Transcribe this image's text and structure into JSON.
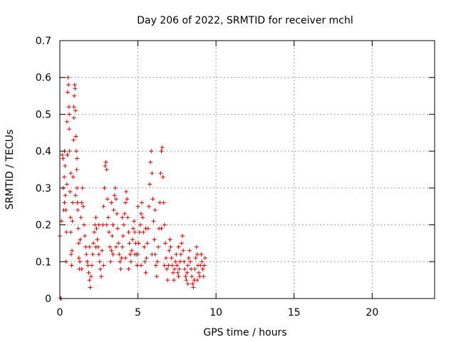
{
  "chart_data": {
    "type": "scatter",
    "title": "Day 206 of 2022, SRMTID for receiver mchl",
    "xlabel": "GPS time / hours",
    "ylabel": "SRMTID / TECUs",
    "xlim": [
      0,
      24
    ],
    "ylim": [
      0,
      0.7
    ],
    "xticks": [
      0,
      5,
      10,
      15,
      20
    ],
    "xtick_labels": [
      "0",
      "5",
      "10",
      "15",
      "20"
    ],
    "yticks": [
      0,
      0.1,
      0.2,
      0.3,
      0.4,
      0.5,
      0.6,
      0.7
    ],
    "ytick_labels": [
      "0",
      "0.1",
      "0.2",
      "0.3",
      "0.4",
      "0.5",
      "0.6",
      "0.7"
    ],
    "grid": true,
    "marker": "+",
    "series": [
      {
        "name": "mchl",
        "color": "#e00000",
        "points": [
          [
            0.0,
            0.17
          ],
          [
            0.05,
            0.0
          ],
          [
            0.08,
            0.0
          ],
          [
            0.1,
            0.21
          ],
          [
            0.15,
            0.39
          ],
          [
            0.2,
            0.38
          ],
          [
            0.22,
            0.3
          ],
          [
            0.25,
            0.24
          ],
          [
            0.28,
            0.33
          ],
          [
            0.3,
            0.4
          ],
          [
            0.33,
            0.36
          ],
          [
            0.35,
            0.28
          ],
          [
            0.38,
            0.24
          ],
          [
            0.4,
            0.1
          ],
          [
            0.42,
            0.18
          ],
          [
            0.45,
            0.31
          ],
          [
            0.48,
            0.39
          ],
          [
            0.5,
            0.56
          ],
          [
            0.52,
            0.6
          ],
          [
            0.55,
            0.58
          ],
          [
            0.58,
            0.52
          ],
          [
            0.6,
            0.46
          ],
          [
            0.62,
            0.4
          ],
          [
            0.65,
            0.29
          ],
          [
            0.68,
            0.22
          ],
          [
            0.7,
            0.18
          ],
          [
            0.72,
            0.12
          ],
          [
            0.75,
            0.09
          ],
          [
            0.78,
            0.13
          ],
          [
            0.8,
            0.21
          ],
          [
            0.82,
            0.26
          ],
          [
            0.85,
            0.33
          ],
          [
            0.88,
            0.43
          ],
          [
            0.9,
            0.49
          ],
          [
            0.92,
            0.55
          ],
          [
            0.95,
            0.58
          ],
          [
            0.98,
            0.57
          ],
          [
            1.0,
            0.51
          ],
          [
            1.02,
            0.44
          ],
          [
            1.05,
            0.4
          ],
          [
            1.08,
            0.35
          ],
          [
            1.1,
            0.3
          ],
          [
            1.12,
            0.26
          ],
          [
            1.15,
            0.24
          ],
          [
            1.18,
            0.19
          ],
          [
            1.2,
            0.15
          ],
          [
            1.22,
            0.11
          ],
          [
            1.25,
            0.08
          ],
          [
            1.28,
            0.1
          ],
          [
            1.3,
            0.16
          ],
          [
            1.35,
            0.22
          ],
          [
            1.4,
            0.26
          ],
          [
            1.45,
            0.3
          ],
          [
            1.5,
            0.25
          ],
          [
            1.55,
            0.2
          ],
          [
            1.6,
            0.17
          ],
          [
            1.65,
            0.14
          ],
          [
            1.7,
            0.12
          ],
          [
            1.75,
            0.1
          ],
          [
            1.8,
            0.09
          ],
          [
            1.85,
            0.07
          ],
          [
            1.9,
            0.05
          ],
          [
            1.95,
            0.03
          ],
          [
            2.0,
            0.06
          ],
          [
            2.05,
            0.09
          ],
          [
            2.1,
            0.12
          ],
          [
            2.15,
            0.15
          ],
          [
            2.2,
            0.18
          ],
          [
            2.25,
            0.2
          ],
          [
            2.3,
            0.22
          ],
          [
            2.35,
            0.19
          ],
          [
            2.4,
            0.16
          ],
          [
            2.45,
            0.14
          ],
          [
            2.5,
            0.12
          ],
          [
            2.55,
            0.1
          ],
          [
            2.6,
            0.08
          ],
          [
            2.65,
            0.06
          ],
          [
            2.7,
            0.13
          ],
          [
            2.75,
            0.2
          ],
          [
            2.8,
            0.25
          ],
          [
            2.85,
            0.3
          ],
          [
            2.9,
            0.36
          ],
          [
            2.95,
            0.37
          ],
          [
            3.0,
            0.35
          ],
          [
            3.05,
            0.27
          ],
          [
            3.1,
            0.22
          ],
          [
            3.15,
            0.18
          ],
          [
            3.2,
            0.14
          ],
          [
            3.25,
            0.1
          ],
          [
            3.3,
            0.13
          ],
          [
            3.35,
            0.17
          ],
          [
            3.4,
            0.2
          ],
          [
            3.45,
            0.24
          ],
          [
            3.5,
            0.28
          ],
          [
            3.55,
            0.3
          ],
          [
            3.6,
            0.27
          ],
          [
            3.65,
            0.23
          ],
          [
            3.7,
            0.19
          ],
          [
            3.75,
            0.15
          ],
          [
            3.8,
            0.12
          ],
          [
            3.85,
            0.1
          ],
          [
            3.9,
            0.08
          ],
          [
            3.95,
            0.11
          ],
          [
            4.0,
            0.14
          ],
          [
            4.05,
            0.17
          ],
          [
            4.1,
            0.2
          ],
          [
            4.15,
            0.23
          ],
          [
            4.2,
            0.26
          ],
          [
            4.25,
            0.29
          ],
          [
            4.3,
            0.27
          ],
          [
            4.35,
            0.22
          ],
          [
            4.4,
            0.18
          ],
          [
            4.45,
            0.15
          ],
          [
            4.5,
            0.12
          ],
          [
            4.55,
            0.1
          ],
          [
            4.6,
            0.13
          ],
          [
            4.65,
            0.16
          ],
          [
            4.7,
            0.19
          ],
          [
            4.75,
            0.21
          ],
          [
            4.8,
            0.18
          ],
          [
            4.85,
            0.15
          ],
          [
            4.9,
            0.12
          ],
          [
            4.95,
            0.09
          ],
          [
            5.0,
            0.12
          ],
          [
            5.05,
            0.15
          ],
          [
            5.1,
            0.18
          ],
          [
            5.15,
            0.2
          ],
          [
            5.2,
            0.23
          ],
          [
            5.25,
            0.26
          ],
          [
            5.3,
            0.22
          ],
          [
            5.35,
            0.18
          ],
          [
            5.4,
            0.14
          ],
          [
            5.45,
            0.1
          ],
          [
            5.5,
            0.07
          ],
          [
            5.55,
            0.11
          ],
          [
            5.6,
            0.15
          ],
          [
            5.65,
            0.19
          ],
          [
            5.7,
            0.25
          ],
          [
            5.75,
            0.31
          ],
          [
            5.8,
            0.37
          ],
          [
            5.85,
            0.4
          ],
          [
            5.9,
            0.34
          ],
          [
            5.95,
            0.27
          ],
          [
            6.0,
            0.21
          ],
          [
            6.05,
            0.16
          ],
          [
            6.1,
            0.12
          ],
          [
            6.15,
            0.09
          ],
          [
            6.2,
            0.06
          ],
          [
            6.25,
            0.1
          ],
          [
            6.3,
            0.14
          ],
          [
            6.35,
            0.19
          ],
          [
            6.4,
            0.26
          ],
          [
            6.45,
            0.34
          ],
          [
            6.5,
            0.4
          ],
          [
            6.55,
            0.41
          ],
          [
            6.6,
            0.33
          ],
          [
            6.65,
            0.26
          ],
          [
            6.7,
            0.2
          ],
          [
            6.75,
            0.15
          ],
          [
            6.8,
            0.11
          ],
          [
            6.85,
            0.08
          ],
          [
            6.9,
            0.05
          ],
          [
            6.95,
            0.09
          ],
          [
            7.0,
            0.13
          ],
          [
            7.05,
            0.16
          ],
          [
            7.1,
            0.14
          ],
          [
            7.15,
            0.11
          ],
          [
            7.2,
            0.09
          ],
          [
            7.25,
            0.07
          ],
          [
            7.3,
            0.05
          ],
          [
            7.35,
            0.08
          ],
          [
            7.4,
            0.1
          ],
          [
            7.45,
            0.12
          ],
          [
            7.5,
            0.09
          ],
          [
            7.55,
            0.07
          ],
          [
            7.6,
            0.06
          ],
          [
            7.65,
            0.08
          ],
          [
            7.7,
            0.1
          ],
          [
            7.75,
            0.12
          ],
          [
            7.8,
            0.15
          ],
          [
            7.85,
            0.17
          ],
          [
            7.9,
            0.13
          ],
          [
            7.95,
            0.1
          ],
          [
            8.0,
            0.08
          ],
          [
            8.05,
            0.06
          ],
          [
            8.1,
            0.05
          ],
          [
            8.15,
            0.07
          ],
          [
            8.2,
            0.09
          ],
          [
            8.25,
            0.11
          ],
          [
            8.3,
            0.13
          ],
          [
            8.35,
            0.1
          ],
          [
            8.4,
            0.08
          ],
          [
            8.45,
            0.06
          ],
          [
            8.5,
            0.04
          ],
          [
            8.55,
            0.03
          ],
          [
            8.6,
            0.05
          ],
          [
            8.65,
            0.08
          ],
          [
            8.7,
            0.11
          ],
          [
            8.75,
            0.14
          ],
          [
            8.8,
            0.12
          ],
          [
            8.85,
            0.09
          ],
          [
            8.9,
            0.07
          ],
          [
            8.95,
            0.06
          ],
          [
            9.0,
            0.09
          ],
          [
            9.05,
            0.12
          ],
          [
            9.1,
            0.1
          ],
          [
            9.15,
            0.08
          ],
          [
            9.2,
            0.06
          ],
          [
            9.25,
            0.09
          ],
          [
            9.3,
            0.11
          ],
          [
            0.6,
            0.5
          ],
          [
            0.9,
            0.52
          ],
          [
            1.1,
            0.38
          ],
          [
            2.3,
            0.14
          ],
          [
            3.0,
            0.2
          ],
          [
            3.6,
            0.14
          ],
          [
            4.4,
            0.08
          ],
          [
            5.2,
            0.09
          ],
          [
            6.1,
            0.24
          ],
          [
            7.6,
            0.14
          ],
          [
            0.3,
            0.26
          ],
          [
            0.7,
            0.34
          ],
          [
            1.4,
            0.08
          ],
          [
            2.5,
            0.2
          ],
          [
            3.3,
            0.26
          ],
          [
            4.0,
            0.22
          ],
          [
            4.8,
            0.12
          ],
          [
            5.5,
            0.19
          ],
          [
            6.7,
            0.09
          ],
          [
            8.2,
            0.04
          ],
          [
            0.45,
            0.48
          ],
          [
            1.0,
            0.28
          ],
          [
            1.9,
            0.14
          ],
          [
            2.8,
            0.09
          ],
          [
            3.4,
            0.12
          ],
          [
            4.2,
            0.11
          ],
          [
            5.0,
            0.25
          ],
          [
            5.9,
            0.12
          ],
          [
            6.5,
            0.19
          ],
          [
            8.8,
            0.05
          ]
        ]
      }
    ]
  }
}
